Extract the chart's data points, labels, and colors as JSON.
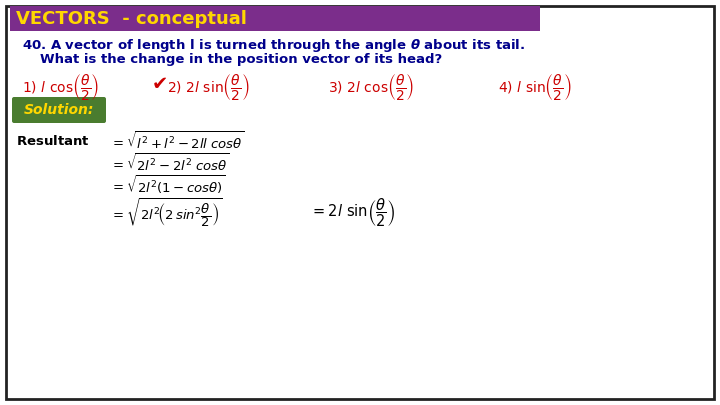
{
  "title": "VECTORS  - conceptual",
  "title_bg": "#7B2D8B",
  "title_color": "#FFD700",
  "outer_bg": "#FFFFFF",
  "border_color": "#222222",
  "question_color": "#00008B",
  "options_color": "#CC0000",
  "solution_bg": "#4A7C2F",
  "solution_color": "#FFD700",
  "math_color": "#000000",
  "checkmark_color": "#CC0000"
}
